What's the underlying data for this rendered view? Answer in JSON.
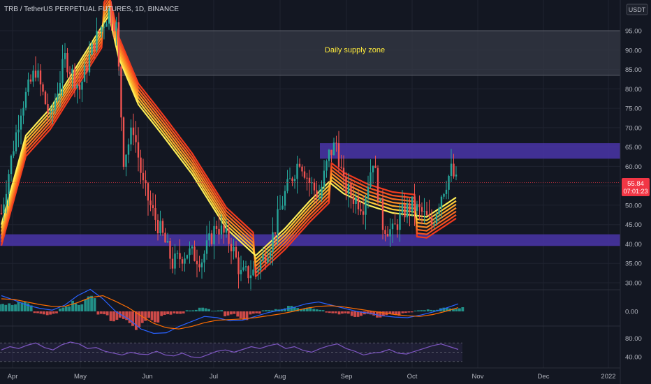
{
  "header": {
    "title": "TRB / TetherUS PERPETUAL FUTURES, 1D, BINANCE"
  },
  "price_axis": {
    "unit_button": "USDT",
    "last_price_label": "55.84",
    "countdown_label": "07:01:23"
  },
  "zones": {
    "supply_label": "Daily supply zone"
  },
  "colors": {
    "background": "#131722",
    "up_candle": "#26a69a",
    "down_candle": "#ef5350",
    "zone_purple": "#4a35a8",
    "zone_gray": "#363a45",
    "ribbon_outer": "#f23a1e",
    "ribbon_inner": "#ffee58",
    "macd_line": "#2962ff",
    "signal_line": "#ff6d00",
    "rsi_line": "#7e57c2",
    "price_badge": "#f23645"
  },
  "chart_data": [
    {
      "type": "candlestick",
      "title": "TRB / TetherUS PERPETUAL FUTURES, 1D, BINANCE",
      "x_tick_labels": [
        "Apr",
        "May",
        "Jun",
        "Jul",
        "Aug",
        "Sep",
        "Oct",
        "Nov",
        "Dec",
        "2022"
      ],
      "y_tick_labels": [
        "95.00",
        "90.00",
        "85.00",
        "80.00",
        "75.00",
        "70.00",
        "65.00",
        "60.00",
        "55.00",
        "50.00",
        "45.00",
        "40.00",
        "35.00",
        "30.00"
      ],
      "ylim": [
        28,
        100
      ],
      "last_price": 55.84,
      "grid": true,
      "close_path": [
        [
          0,
          48
        ],
        [
          4,
          62
        ],
        [
          8,
          75
        ],
        [
          14,
          85
        ],
        [
          20,
          72
        ],
        [
          26,
          88
        ],
        [
          32,
          80
        ],
        [
          38,
          92
        ],
        [
          44,
          100
        ],
        [
          47,
          96
        ],
        [
          50,
          62
        ],
        [
          54,
          70
        ],
        [
          58,
          55
        ],
        [
          62,
          48
        ],
        [
          66,
          42
        ],
        [
          70,
          35
        ],
        [
          76,
          38
        ],
        [
          82,
          36
        ],
        [
          88,
          45
        ],
        [
          94,
          40
        ],
        [
          98,
          32
        ],
        [
          104,
          33
        ],
        [
          110,
          40
        ],
        [
          116,
          53
        ],
        [
          122,
          62
        ],
        [
          126,
          56
        ],
        [
          130,
          52
        ],
        [
          134,
          63
        ],
        [
          137,
          66
        ],
        [
          140,
          55
        ],
        [
          144,
          52
        ],
        [
          148,
          50
        ],
        [
          152,
          62
        ],
        [
          156,
          45
        ],
        [
          160,
          43
        ],
        [
          164,
          48
        ],
        [
          168,
          50
        ],
        [
          172,
          48
        ],
        [
          176,
          45
        ],
        [
          180,
          53
        ],
        [
          184,
          59
        ],
        [
          186,
          55.84
        ]
      ],
      "ribbon": {
        "bands": 7,
        "top_path": [
          [
            0,
            45
          ],
          [
            10,
            68
          ],
          [
            20,
            75
          ],
          [
            30,
            85
          ],
          [
            40,
            95
          ],
          [
            44,
            99
          ],
          [
            48,
            88
          ],
          [
            56,
            76
          ],
          [
            66,
            68
          ],
          [
            78,
            58
          ],
          [
            92,
            44
          ],
          [
            104,
            37
          ],
          [
            116,
            44
          ],
          [
            126,
            51
          ],
          [
            134,
            56
          ],
          [
            140,
            53
          ],
          [
            150,
            50
          ],
          [
            160,
            48
          ],
          [
            174,
            47
          ],
          [
            186,
            52
          ]
        ]
      },
      "zones": [
        {
          "label": "Daily supply zone",
          "from": 83.5,
          "to": 95
        },
        {
          "label": "",
          "from": 62,
          "to": 66
        },
        {
          "label": "",
          "from": 39.5,
          "to": 42.5
        }
      ]
    },
    {
      "type": "bar",
      "title": "",
      "y_tick_labels": [
        "0.00"
      ],
      "series": [
        {
          "values": [
            1.2,
            2.0,
            1.5,
            -0.5,
            -0.6,
            0.8,
            2.0,
            2.5,
            -0.8,
            -1.6,
            -2.4,
            -3.0,
            -1.8,
            -0.9,
            -0.4,
            0.3,
            0.6,
            0.2,
            -0.8,
            -1.4,
            -0.6,
            0.2,
            0.6,
            0.9,
            0.7,
            0.4,
            -0.3,
            -0.6,
            -0.9,
            -0.8,
            -1.0,
            -0.7,
            -0.3,
            0.2,
            0.4,
            0.6,
            0.8
          ]
        }
      ],
      "lines": [
        {
          "values": [
            2.5,
            1.8,
            1.0,
            0.5,
            0.2,
            1.0,
            2.5,
            3.5,
            2.0,
            0.0,
            -1.2,
            -2.8,
            -3.5,
            -3.4,
            -2.4,
            -1.6,
            -0.8,
            -1.0,
            -1.5,
            -1.4,
            -0.8,
            -0.2,
            0.2,
            0.6,
            1.2,
            1.5,
            1.0,
            0.5,
            0.0,
            -0.3,
            -0.7,
            -0.9,
            -1.0,
            -0.6,
            -0.1,
            0.5,
            1.2
          ]
        },
        {
          "values": [
            2.0,
            1.9,
            1.5,
            1.1,
            0.8,
            0.8,
            1.4,
            2.2,
            2.5,
            1.6,
            0.6,
            -0.7,
            -1.9,
            -2.6,
            -2.8,
            -2.4,
            -1.8,
            -1.4,
            -1.3,
            -1.2,
            -1.0,
            -0.7,
            -0.4,
            0.0,
            0.5,
            0.8,
            0.9,
            0.7,
            0.4,
            0.1,
            -0.2,
            -0.5,
            -0.7,
            -0.8,
            -0.5,
            0.0,
            0.6
          ]
        }
      ]
    },
    {
      "type": "line",
      "title": "",
      "y_tick_labels": [
        "80.00",
        "40.00"
      ],
      "ylim": [
        25,
        90
      ],
      "series": [
        {
          "values": [
            55,
            62,
            58,
            65,
            70,
            60,
            55,
            66,
            72,
            68,
            58,
            60,
            52,
            48,
            44,
            50,
            46,
            45,
            52,
            44,
            42,
            48,
            40,
            38,
            45,
            52,
            55,
            50,
            56,
            62,
            58,
            64,
            68,
            58,
            62,
            54,
            50,
            58,
            64,
            68,
            58,
            52,
            44,
            48,
            50,
            56,
            48,
            46,
            52,
            58,
            64,
            68,
            62,
            56
          ]
        }
      ]
    }
  ]
}
